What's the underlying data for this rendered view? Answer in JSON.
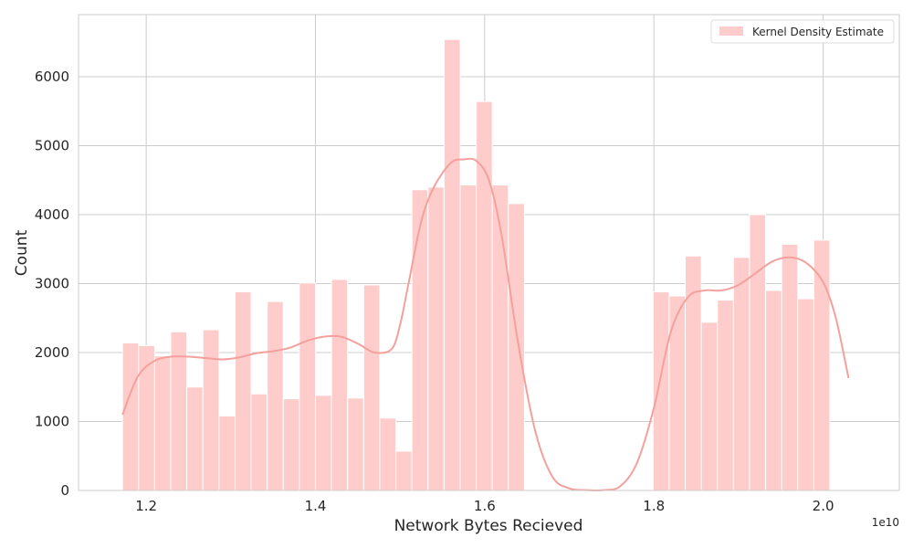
{
  "chart_data": {
    "type": "bar",
    "xlabel": "Network Bytes Recieved",
    "ylabel": "Count",
    "x_offset_label": "1e10",
    "xlim": [
      1.12,
      2.09
    ],
    "ylim": [
      0,
      6900
    ],
    "xticks": [
      1.2,
      1.4,
      1.6,
      1.8,
      2.0
    ],
    "xtick_labels": [
      "1.2",
      "1.4",
      "1.6",
      "1.8",
      "2.0"
    ],
    "yticks": [
      0,
      1000,
      2000,
      3000,
      4000,
      5000,
      6000
    ],
    "ytick_labels": [
      "0",
      "1000",
      "2000",
      "3000",
      "4000",
      "5000",
      "6000"
    ],
    "grid": true,
    "legend": {
      "position": "top-right",
      "entries": [
        "Kernel Density Estimate"
      ]
    },
    "bar_color": "#ffcccc",
    "kde_color": "#f4a09c",
    "bin_start": 1.172,
    "bin_width": 0.019,
    "counts": [
      2140,
      2100,
      1950,
      2300,
      1500,
      2330,
      1080,
      2880,
      1400,
      2740,
      1330,
      3010,
      1380,
      3060,
      1340,
      2980,
      1050,
      570,
      4360,
      4400,
      6540,
      4430,
      5640,
      4430,
      4160,
      0,
      0,
      0,
      0,
      0,
      0,
      0,
      0,
      2880,
      2820,
      3400,
      2440,
      2760,
      3380,
      4000,
      2900,
      3570,
      2780,
      3630
    ],
    "kde": {
      "x": [
        1.172,
        1.19,
        1.21,
        1.23,
        1.25,
        1.27,
        1.29,
        1.31,
        1.33,
        1.35,
        1.37,
        1.39,
        1.41,
        1.43,
        1.45,
        1.47,
        1.49,
        1.5,
        1.51,
        1.525,
        1.54,
        1.56,
        1.575,
        1.59,
        1.605,
        1.62,
        1.64,
        1.66,
        1.68,
        1.7,
        1.72,
        1.74,
        1.76,
        1.78,
        1.8,
        1.82,
        1.84,
        1.86,
        1.88,
        1.9,
        1.92,
        1.94,
        1.96,
        1.98,
        2.0,
        2.015,
        2.03
      ],
      "y": [
        1100,
        1650,
        1880,
        1940,
        1940,
        1920,
        1900,
        1930,
        1990,
        2020,
        2070,
        2170,
        2230,
        2230,
        2130,
        2000,
        2050,
        2400,
        3000,
        3900,
        4400,
        4750,
        4800,
        4780,
        4500,
        3700,
        2100,
        850,
        200,
        30,
        5,
        5,
        60,
        400,
        1200,
        2300,
        2800,
        2900,
        2900,
        2980,
        3150,
        3320,
        3380,
        3300,
        3020,
        2500,
        1630
      ]
    }
  }
}
